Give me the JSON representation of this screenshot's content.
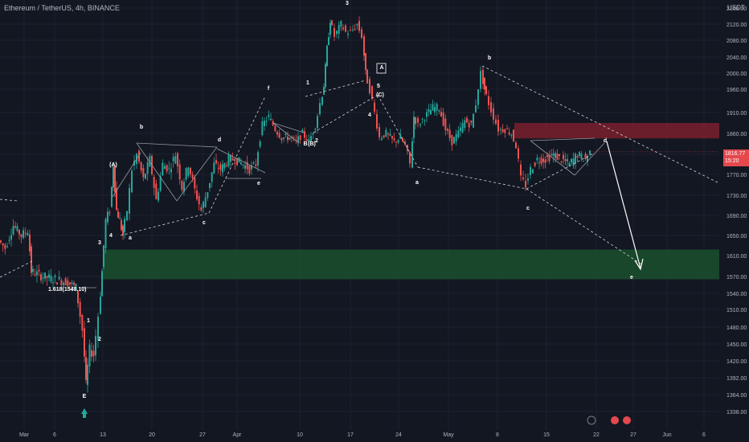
{
  "header": {
    "title": "Ethereum / TetherUS, 4h, BINANCE",
    "currency": "USDT"
  },
  "last_price": {
    "value": "1816.77",
    "countdown": "15:20"
  },
  "colors": {
    "background": "#131722",
    "up": "#26a69a",
    "down": "#ef5350",
    "grid": "#1e2230",
    "axis_text": "#b2b5be",
    "resistance_zone": "#7a1f2b",
    "support_zone": "#1b4d2e"
  },
  "chart_data": {
    "type": "candlestick",
    "title": "Ethereum / TetherUS, 4h, BINANCE",
    "y_axis": {
      "ticks": [
        2160,
        2120,
        2080,
        2040,
        2000,
        1960,
        1910,
        1860,
        1810,
        1770,
        1730,
        1690,
        1650,
        1610,
        1570,
        1540,
        1510,
        1480,
        1450,
        1420,
        1392,
        1364,
        1338
      ],
      "tick_labels": [
        "2160.00",
        "2120.00",
        "2080.00",
        "2040.00",
        "2000.00",
        "1960.00",
        "1910.00",
        "1860.00",
        "1810.00",
        "1770.00",
        "1730.00",
        "1690.00",
        "1650.00",
        "1610.00",
        "1570.00",
        "1540.00",
        "1510.00",
        "1480.00",
        "1450.00",
        "1420.00",
        "1392.00",
        "1364.00",
        "1338.00"
      ],
      "range": [
        1320,
        2180
      ],
      "scale": "log"
    },
    "x_axis": {
      "labels": [
        "Mar",
        "6",
        "13",
        "20",
        "27",
        "Apr",
        "10",
        "17",
        "24",
        "May",
        "8",
        "15",
        "22",
        "27",
        "Jun",
        "6"
      ]
    },
    "zones": [
      {
        "name": "resistance",
        "from": 1848,
        "to": 1885,
        "start": "8"
      },
      {
        "name": "support",
        "from": 1565,
        "to": 1622,
        "start": "13"
      }
    ],
    "fib_label": "1.618(1548.10)",
    "annotations": [
      "E",
      "1",
      "2",
      "3",
      "4",
      "(A)",
      "a",
      "b",
      "c",
      "d",
      "e",
      "f",
      "1",
      "2",
      "(B)",
      "3",
      "5",
      "(C)",
      "4",
      "A",
      "a",
      "b",
      "c",
      "d",
      "e",
      "B"
    ],
    "price_path": [
      [
        0,
        1640
      ],
      [
        8,
        1625
      ],
      [
        18,
        1670
      ],
      [
        28,
        1650
      ],
      [
        36,
        1660
      ],
      [
        40,
        1580
      ],
      [
        55,
        1570
      ],
      [
        70,
        1565
      ],
      [
        86,
        1560
      ],
      [
        96,
        1550
      ],
      [
        104,
        1475
      ],
      [
        108,
        1380
      ],
      [
        113,
        1440
      ],
      [
        118,
        1430
      ],
      [
        124,
        1500
      ],
      [
        128,
        1580
      ],
      [
        133,
        1680
      ],
      [
        138,
        1700
      ],
      [
        142,
        1790
      ],
      [
        146,
        1700
      ],
      [
        150,
        1680
      ],
      [
        154,
        1650
      ],
      [
        160,
        1700
      ],
      [
        166,
        1780
      ],
      [
        172,
        1810
      ],
      [
        180,
        1760
      ],
      [
        188,
        1800
      ],
      [
        196,
        1720
      ],
      [
        204,
        1790
      ],
      [
        212,
        1780
      ],
      [
        220,
        1810
      ],
      [
        228,
        1745
      ],
      [
        236,
        1790
      ],
      [
        244,
        1740
      ],
      [
        252,
        1700
      ],
      [
        260,
        1740
      ],
      [
        268,
        1790
      ],
      [
        276,
        1780
      ],
      [
        286,
        1800
      ],
      [
        294,
        1800
      ],
      [
        304,
        1790
      ],
      [
        312,
        1780
      ],
      [
        320,
        1790
      ],
      [
        328,
        1880
      ],
      [
        336,
        1900
      ],
      [
        344,
        1870
      ],
      [
        352,
        1850
      ],
      [
        362,
        1850
      ],
      [
        370,
        1840
      ],
      [
        378,
        1860
      ],
      [
        386,
        1840
      ],
      [
        394,
        1880
      ],
      [
        400,
        1930
      ],
      [
        404,
        1970
      ],
      [
        408,
        2060
      ],
      [
        412,
        2130
      ],
      [
        418,
        2090
      ],
      [
        426,
        2120
      ],
      [
        432,
        2100
      ],
      [
        438,
        2100
      ],
      [
        446,
        2120
      ],
      [
        452,
        2090
      ],
      [
        456,
        2000
      ],
      [
        462,
        1960
      ],
      [
        468,
        1910
      ],
      [
        474,
        1850
      ],
      [
        482,
        1860
      ],
      [
        492,
        1840
      ],
      [
        500,
        1850
      ],
      [
        506,
        1830
      ],
      [
        512,
        1790
      ],
      [
        516,
        1900
      ],
      [
        522,
        1880
      ],
      [
        530,
        1900
      ],
      [
        540,
        1920
      ],
      [
        548,
        1920
      ],
      [
        556,
        1870
      ],
      [
        564,
        1840
      ],
      [
        572,
        1860
      ],
      [
        580,
        1890
      ],
      [
        588,
        1880
      ],
      [
        594,
        1930
      ],
      [
        600,
        2000
      ],
      [
        604,
        1960
      ],
      [
        610,
        1930
      ],
      [
        616,
        1900
      ],
      [
        622,
        1870
      ],
      [
        630,
        1870
      ],
      [
        638,
        1860
      ],
      [
        644,
        1830
      ],
      [
        650,
        1760
      ],
      [
        656,
        1750
      ],
      [
        662,
        1780
      ],
      [
        670,
        1800
      ],
      [
        680,
        1800
      ],
      [
        690,
        1810
      ],
      [
        700,
        1800
      ],
      [
        710,
        1790
      ],
      [
        720,
        1810
      ],
      [
        730,
        1800
      ],
      [
        736,
        1816
      ]
    ],
    "series": []
  }
}
